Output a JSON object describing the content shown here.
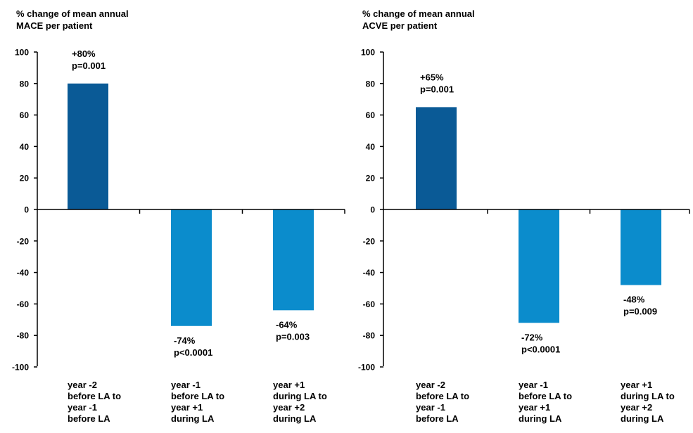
{
  "colors": {
    "dark_bar": "#0a5a96",
    "light_bar": "#0b8ccc",
    "axis": "#000000"
  },
  "chart_data": [
    {
      "type": "bar",
      "title": [
        "% change of mean annual",
        "MACE per patient"
      ],
      "ylim": [
        -100,
        100
      ],
      "yticks": [
        100,
        80,
        60,
        40,
        20,
        0,
        -20,
        -40,
        -60,
        -80,
        -100
      ],
      "grid": false,
      "categories": [
        [
          "year -2",
          "before LA to",
          "year -1",
          "before LA"
        ],
        [
          "year -1",
          "before LA to",
          "year +1",
          "during LA"
        ],
        [
          "year +1",
          "during LA to",
          "year +2",
          "during LA"
        ]
      ],
      "values": [
        80,
        -74,
        -64
      ],
      "bar_colors": [
        "dark",
        "light",
        "light"
      ],
      "annotations": [
        [
          "+80%",
          "p=0.001"
        ],
        [
          "-74%",
          "p<0.0001"
        ],
        [
          "-64%",
          "p=0.003"
        ]
      ]
    },
    {
      "type": "bar",
      "title": [
        "% change of mean annual",
        "ACVE per patient"
      ],
      "ylim": [
        -100,
        100
      ],
      "yticks": [
        100,
        80,
        60,
        40,
        20,
        0,
        -20,
        -40,
        -60,
        -80,
        -100
      ],
      "grid": false,
      "categories": [
        [
          "year -2",
          "before LA to",
          "year -1",
          "before LA"
        ],
        [
          "year -1",
          "before LA to",
          "year +1",
          "during LA"
        ],
        [
          "year +1",
          "during LA to",
          "year +2",
          "during LA"
        ]
      ],
      "values": [
        65,
        -72,
        -48
      ],
      "bar_colors": [
        "dark",
        "light",
        "light"
      ],
      "annotations": [
        [
          "+65%",
          "p=0.001"
        ],
        [
          "-72%",
          "p<0.0001"
        ],
        [
          "-48%",
          "p=0.009"
        ]
      ]
    }
  ]
}
